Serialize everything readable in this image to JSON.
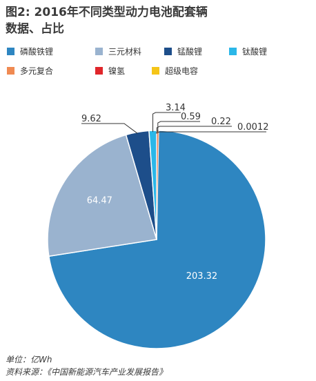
{
  "title_line1": "图2: 2016年不同类型动力电池配套辆",
  "title_line2": "数据、占比",
  "chart_data": {
    "type": "pie",
    "categories": [
      "磷酸铁锂",
      "三元材料",
      "锰酸锂",
      "钛酸锂",
      "多元复合",
      "镍氢",
      "超级电容"
    ],
    "values": [
      203.32,
      64.47,
      9.62,
      3.14,
      0.59,
      0.22,
      0.0012
    ],
    "labels": [
      "203.32",
      "64.47",
      "9.62",
      "3.14",
      "0.59",
      "0.22",
      "0.0012"
    ],
    "colors": [
      "#2e86c1",
      "#9ab3cf",
      "#1d4e8a",
      "#2bb7e8",
      "#f08a52",
      "#e0262b",
      "#f5c518"
    ],
    "legend_position": "top"
  },
  "footer": {
    "unit": "单位：亿Wh",
    "source": "资料来源：《中国新能源汽车产业发展报告》"
  }
}
